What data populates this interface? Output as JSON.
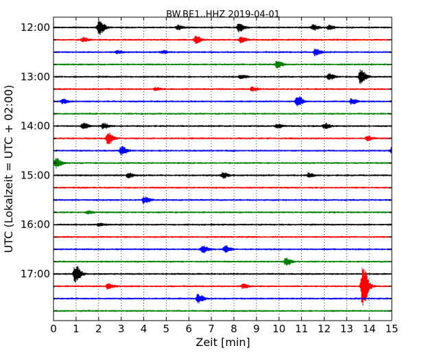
{
  "chart_data": {
    "type": "line",
    "title": "BW.BE1..HHZ 2019-04-01",
    "xlabel": "Zeit  [min]",
    "ylabel": "UTC (Lokalzeit = UTC + 02:00)",
    "xlim": [
      0,
      15
    ],
    "x_ticks": [
      "0",
      "1",
      "2",
      "3",
      "4",
      "5",
      "6",
      "7",
      "8",
      "9",
      "10",
      "11",
      "12",
      "13",
      "14",
      "15"
    ],
    "y_ticks": [
      "12:00",
      "13:00",
      "14:00",
      "15:00",
      "16:00",
      "17:00"
    ],
    "grid": "vertical dotted",
    "color_cycle": [
      "#000000",
      "#ff0000",
      "#0000ff",
      "#008000"
    ],
    "traces": [
      {
        "start": "12:00",
        "events": [
          {
            "t": 2.0,
            "a": 11
          },
          {
            "t": 8.2,
            "a": 6
          },
          {
            "t": 5.5,
            "a": 3
          },
          {
            "t": 11.5,
            "a": 4
          },
          {
            "t": 12.2,
            "a": 3
          }
        ]
      },
      {
        "start": "12:15",
        "events": [
          {
            "t": 6.3,
            "a": 5
          },
          {
            "t": 8.3,
            "a": 4
          },
          {
            "t": 1.3,
            "a": 3
          }
        ]
      },
      {
        "start": "12:30",
        "events": [
          {
            "t": 11.6,
            "a": 5
          },
          {
            "t": 4.8,
            "a": 2
          },
          {
            "t": 2.8,
            "a": 2
          }
        ]
      },
      {
        "start": "12:45",
        "events": [
          {
            "t": 9.9,
            "a": 5
          }
        ]
      },
      {
        "start": "13:00",
        "events": [
          {
            "t": 13.6,
            "a": 10
          },
          {
            "t": 8.3,
            "a": 3
          },
          {
            "t": 12.2,
            "a": 5
          }
        ]
      },
      {
        "start": "13:15",
        "events": [
          {
            "t": 8.8,
            "a": 3
          },
          {
            "t": 4.5,
            "a": 2
          }
        ]
      },
      {
        "start": "13:30",
        "events": [
          {
            "t": 10.8,
            "a": 8
          },
          {
            "t": 13.2,
            "a": 4
          },
          {
            "t": 0.4,
            "a": 3
          }
        ]
      },
      {
        "start": "13:45",
        "events": []
      },
      {
        "start": "14:00",
        "events": [
          {
            "t": 1.3,
            "a": 4
          },
          {
            "t": 2.2,
            "a": 4
          },
          {
            "t": 12.0,
            "a": 4
          },
          {
            "t": 9.9,
            "a": 3
          }
        ]
      },
      {
        "start": "14:15",
        "events": [
          {
            "t": 2.4,
            "a": 9
          },
          {
            "t": 13.9,
            "a": 3
          }
        ]
      },
      {
        "start": "14:30",
        "events": [
          {
            "t": 3.0,
            "a": 7
          },
          {
            "t": 15.0,
            "a": 6
          }
        ]
      },
      {
        "start": "14:45",
        "events": [
          {
            "t": 0.1,
            "a": 7
          }
        ]
      },
      {
        "start": "15:00",
        "events": [
          {
            "t": 7.5,
            "a": 4
          },
          {
            "t": 3.3,
            "a": 3
          },
          {
            "t": 11.3,
            "a": 3
          }
        ]
      },
      {
        "start": "15:15",
        "events": []
      },
      {
        "start": "15:30",
        "events": [
          {
            "t": 4.0,
            "a": 5
          }
        ]
      },
      {
        "start": "15:45",
        "events": [
          {
            "t": 1.5,
            "a": 2
          }
        ]
      },
      {
        "start": "16:00",
        "events": [
          {
            "t": 2.0,
            "a": 2
          }
        ]
      },
      {
        "start": "16:15",
        "events": []
      },
      {
        "start": "16:30",
        "events": [
          {
            "t": 6.6,
            "a": 5
          },
          {
            "t": 7.6,
            "a": 5
          }
        ]
      },
      {
        "start": "16:45",
        "events": [
          {
            "t": 10.3,
            "a": 5
          }
        ]
      },
      {
        "start": "17:00",
        "events": [
          {
            "t": 0.95,
            "a": 13
          }
        ]
      },
      {
        "start": "17:15",
        "events": [
          {
            "t": 13.7,
            "a": 30
          },
          {
            "t": 2.4,
            "a": 4
          },
          {
            "t": 8.4,
            "a": 3
          }
        ]
      },
      {
        "start": "17:30",
        "events": [
          {
            "t": 6.4,
            "a": 6
          }
        ]
      },
      {
        "start": "17:45",
        "events": []
      }
    ]
  }
}
